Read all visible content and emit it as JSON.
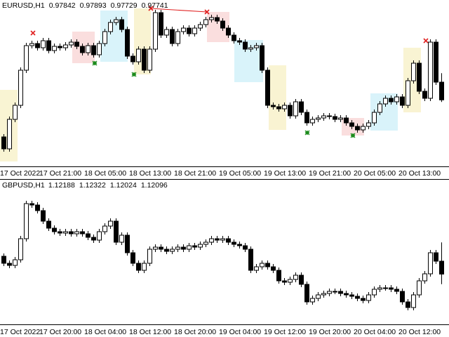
{
  "chart_data": [
    {
      "type": "candlestick",
      "title": "EURUSD,H1",
      "color": "#000000",
      "up_fill": "#ffffff",
      "down_fill": "#000000",
      "categories": [
        "17 Oct 2022",
        null,
        null,
        null,
        null,
        null,
        null,
        "17 Oct 21:00",
        null,
        null,
        null,
        null,
        null,
        null,
        null,
        "18 Oct 05:00",
        null,
        null,
        null,
        null,
        null,
        null,
        null,
        "18 Oct 13:00",
        null,
        null,
        null,
        null,
        null,
        null,
        null,
        "18 Oct 21:00",
        null,
        null,
        null,
        null,
        null,
        null,
        null,
        "19 Oct 05:00",
        null,
        null,
        null,
        null,
        null,
        null,
        null,
        "19 Oct 13:00",
        null,
        null,
        null,
        null,
        null,
        null,
        null,
        "19 Oct 21:00",
        null,
        null,
        null,
        null,
        null,
        null,
        null,
        "20 Oct 05:00",
        null,
        null,
        null,
        null,
        null,
        null,
        null,
        "20 Oct 13:00",
        null,
        null,
        null,
        null,
        null,
        null,
        null
      ],
      "open": [
        0.9753,
        0.97462,
        0.9763,
        0.9771,
        0.9791,
        0.9805,
        0.98062,
        0.98038,
        0.98078,
        0.98022,
        0.98046,
        0.98038,
        0.98054,
        0.9807,
        0.98046,
        0.9801,
        0.9805,
        0.97998,
        0.98062,
        0.9813,
        0.98182,
        0.98198,
        0.98142,
        0.9799,
        0.97958,
        0.9803,
        0.9791,
        0.9803,
        0.98238,
        0.9811,
        0.98142,
        0.98062,
        0.9813,
        0.9815,
        0.98118,
        0.9815,
        0.9817,
        0.98198,
        0.9821,
        0.9819,
        0.9815,
        0.9811,
        0.98078,
        0.9807,
        0.9803,
        0.98038,
        0.9805,
        0.9791,
        0.9771,
        0.97702,
        0.9769,
        0.9771,
        0.9765,
        0.9773,
        0.9767,
        0.9761,
        0.9763,
        0.97638,
        0.9765,
        0.97646,
        0.9763,
        0.97638,
        0.9761,
        0.9759,
        0.9757,
        0.9759,
        0.9761,
        0.9767,
        0.97718,
        0.9775,
        0.9773,
        0.97758,
        0.9771,
        0.9785,
        0.9795,
        0.9779,
        0.9775,
        0.9807,
        0.97842
      ],
      "high": [
        0.97546,
        0.97646,
        0.97726,
        0.97926,
        0.98066,
        0.98078,
        0.98078,
        0.98094,
        0.98094,
        0.98062,
        0.98062,
        0.9807,
        0.98086,
        0.98086,
        0.98062,
        0.98066,
        0.98066,
        0.98078,
        0.98146,
        0.98198,
        0.98214,
        0.98214,
        0.98158,
        0.98006,
        0.98046,
        0.98046,
        0.98046,
        0.98254,
        0.98254,
        0.98158,
        0.98158,
        0.98146,
        0.98166,
        0.98166,
        0.98166,
        0.98186,
        0.98214,
        0.98226,
        0.98226,
        0.98206,
        0.98166,
        0.98126,
        0.98094,
        0.98086,
        0.98054,
        0.98066,
        0.98066,
        0.97926,
        0.97726,
        0.97718,
        0.97726,
        0.97726,
        0.97746,
        0.97746,
        0.97686,
        0.97646,
        0.97654,
        0.97666,
        0.97666,
        0.97662,
        0.97654,
        0.97654,
        0.97626,
        0.97606,
        0.97606,
        0.97626,
        0.97686,
        0.97734,
        0.97766,
        0.97766,
        0.97774,
        0.97774,
        0.97866,
        0.97966,
        0.97966,
        0.97806,
        0.98086,
        0.98086,
        0.97893
      ],
      "low": [
        0.97446,
        0.97446,
        0.97614,
        0.97694,
        0.97894,
        0.98034,
        0.98022,
        0.98022,
        0.98006,
        0.98006,
        0.98022,
        0.98022,
        0.98038,
        0.9803,
        0.97994,
        0.97994,
        0.97982,
        0.97982,
        0.98046,
        0.98114,
        0.98166,
        0.98126,
        0.97974,
        0.97942,
        0.97942,
        0.97894,
        0.97894,
        0.98014,
        0.98094,
        0.98094,
        0.98046,
        0.98046,
        0.98114,
        0.98102,
        0.98102,
        0.98134,
        0.98154,
        0.98182,
        0.98174,
        0.98134,
        0.98094,
        0.98062,
        0.98054,
        0.98014,
        0.98014,
        0.98022,
        0.97894,
        0.97694,
        0.97686,
        0.97674,
        0.97674,
        0.97634,
        0.97634,
        0.97654,
        0.97594,
        0.97594,
        0.97614,
        0.97622,
        0.9763,
        0.97614,
        0.97614,
        0.97594,
        0.97574,
        0.97554,
        0.97554,
        0.97574,
        0.97594,
        0.97654,
        0.97702,
        0.97714,
        0.97714,
        0.97694,
        0.97694,
        0.97834,
        0.97774,
        0.97734,
        0.97734,
        0.97826,
        0.97729
      ],
      "close": [
        0.97462,
        0.9763,
        0.9771,
        0.9791,
        0.9805,
        0.98062,
        0.98038,
        0.98078,
        0.98022,
        0.98046,
        0.98038,
        0.98054,
        0.9807,
        0.98046,
        0.9801,
        0.9805,
        0.97998,
        0.98062,
        0.9813,
        0.98182,
        0.98198,
        0.98142,
        0.9799,
        0.97958,
        0.9803,
        0.9791,
        0.9803,
        0.98238,
        0.9811,
        0.98142,
        0.98062,
        0.9813,
        0.9815,
        0.98118,
        0.9815,
        0.9817,
        0.98198,
        0.9821,
        0.9819,
        0.9815,
        0.9811,
        0.98078,
        0.9807,
        0.9803,
        0.98038,
        0.9805,
        0.9791,
        0.9771,
        0.97702,
        0.9769,
        0.9771,
        0.9765,
        0.9773,
        0.9767,
        0.9761,
        0.9763,
        0.97638,
        0.9765,
        0.97646,
        0.9763,
        0.97638,
        0.9761,
        0.9759,
        0.9757,
        0.9759,
        0.9761,
        0.9767,
        0.97718,
        0.9775,
        0.9773,
        0.97758,
        0.9771,
        0.9785,
        0.9795,
        0.9779,
        0.9775,
        0.9807,
        0.97842,
        0.97741
      ],
      "ylim": [
        0.97362,
        0.9831
      ]
    },
    {
      "type": "candlestick",
      "title": "GBPUSD,H1",
      "color": "#000000",
      "up_fill": "#ffffff",
      "down_fill": "#000000",
      "categories": [
        "17 Oct 2022",
        null,
        null,
        null,
        null,
        null,
        null,
        "17 Oct 20:00",
        null,
        null,
        null,
        null,
        null,
        null,
        null,
        "18 Oct 04:00",
        null,
        null,
        null,
        null,
        null,
        null,
        null,
        "18 Oct 12:00",
        null,
        null,
        null,
        null,
        null,
        null,
        null,
        "18 Oct 20:00",
        null,
        null,
        null,
        null,
        null,
        null,
        null,
        "19 Oct 04:00",
        null,
        null,
        null,
        null,
        null,
        null,
        null,
        "19 Oct 12:00",
        null,
        null,
        null,
        null,
        null,
        null,
        null,
        "19 Oct 20:00",
        null,
        null,
        null,
        null,
        null,
        null,
        null,
        "20 Oct 04:00",
        null,
        null,
        null,
        null,
        null,
        null,
        null,
        "20 Oct 12:00",
        null,
        null,
        null,
        null,
        null,
        null,
        null
      ],
      "open": [
        1.12223,
        1.12173,
        1.12158,
        1.12198,
        1.12348,
        1.12598,
        1.12588,
        1.12548,
        1.12473,
        1.12423,
        1.12398,
        1.12388,
        1.12398,
        1.12383,
        1.12398,
        1.12383,
        1.12358,
        1.12338,
        1.12398,
        1.12438,
        1.12473,
        1.12323,
        1.12373,
        1.12248,
        1.12173,
        1.12123,
        1.12173,
        1.12273,
        1.12288,
        1.12273,
        1.12258,
        1.12273,
        1.12288,
        1.12273,
        1.12298,
        1.12288,
        1.12308,
        1.12323,
        1.12348,
        1.12338,
        1.12348,
        1.12323,
        1.12308,
        1.12298,
        1.12273,
        1.12123,
        1.12148,
        1.12173,
        1.12148,
        1.12123,
        1.12048,
        1.12038,
        1.12058,
        1.12088,
        1.12023,
        1.11898,
        1.11923,
        1.11948,
        1.11958,
        1.11973,
        1.11973,
        1.11958,
        1.11948,
        1.11938,
        1.11923,
        1.11908,
        1.11948,
        1.11988,
        1.11998,
        1.11998,
        1.11988,
        1.11973,
        1.11898,
        1.11858,
        1.11948,
        1.12048,
        1.12098,
        1.12248,
        1.12188
      ],
      "high": [
        1.12243,
        1.12193,
        1.12218,
        1.12368,
        1.12618,
        1.12618,
        1.12608,
        1.12568,
        1.12493,
        1.12443,
        1.12418,
        1.12418,
        1.12418,
        1.12418,
        1.12418,
        1.12403,
        1.12378,
        1.12418,
        1.12458,
        1.12493,
        1.12493,
        1.12393,
        1.12393,
        1.12268,
        1.12193,
        1.12193,
        1.12293,
        1.12308,
        1.12308,
        1.12293,
        1.12293,
        1.12308,
        1.12308,
        1.12318,
        1.12318,
        1.12328,
        1.12343,
        1.12368,
        1.12368,
        1.12368,
        1.12368,
        1.12343,
        1.12328,
        1.12318,
        1.12293,
        1.12168,
        1.12193,
        1.12193,
        1.12168,
        1.12143,
        1.12068,
        1.12078,
        1.12108,
        1.12108,
        1.12043,
        1.11943,
        1.11968,
        1.11978,
        1.11993,
        1.11993,
        1.11993,
        1.11978,
        1.11968,
        1.11958,
        1.11943,
        1.11968,
        1.12008,
        1.12018,
        1.12018,
        1.12018,
        1.12008,
        1.11993,
        1.11918,
        1.11968,
        1.12068,
        1.12118,
        1.12268,
        1.12268,
        1.12322
      ],
      "low": [
        1.12153,
        1.12138,
        1.12138,
        1.12178,
        1.12328,
        1.12568,
        1.12528,
        1.12453,
        1.12403,
        1.12378,
        1.12368,
        1.12368,
        1.12363,
        1.12363,
        1.12363,
        1.12338,
        1.12318,
        1.12318,
        1.12378,
        1.12418,
        1.12303,
        1.12303,
        1.12228,
        1.12153,
        1.12103,
        1.12103,
        1.12153,
        1.12253,
        1.12253,
        1.12238,
        1.12238,
        1.12253,
        1.12253,
        1.12253,
        1.12268,
        1.12268,
        1.12288,
        1.12303,
        1.12318,
        1.12318,
        1.12303,
        1.12288,
        1.12278,
        1.12253,
        1.12103,
        1.12103,
        1.12128,
        1.12128,
        1.12103,
        1.12028,
        1.12018,
        1.12018,
        1.12038,
        1.12003,
        1.11878,
        1.11878,
        1.11903,
        1.11928,
        1.11938,
        1.11953,
        1.11938,
        1.11928,
        1.11918,
        1.11903,
        1.11888,
        1.11888,
        1.11928,
        1.11968,
        1.11978,
        1.11968,
        1.11953,
        1.11878,
        1.11838,
        1.11838,
        1.11928,
        1.12028,
        1.12078,
        1.12168,
        1.12024
      ],
      "close": [
        1.12173,
        1.12158,
        1.12198,
        1.12348,
        1.12598,
        1.12588,
        1.12548,
        1.12473,
        1.12423,
        1.12398,
        1.12388,
        1.12398,
        1.12383,
        1.12398,
        1.12383,
        1.12358,
        1.12338,
        1.12398,
        1.12438,
        1.12473,
        1.12323,
        1.12373,
        1.12248,
        1.12173,
        1.12123,
        1.12173,
        1.12273,
        1.12288,
        1.12273,
        1.12258,
        1.12273,
        1.12288,
        1.12273,
        1.12298,
        1.12288,
        1.12308,
        1.12323,
        1.12348,
        1.12338,
        1.12348,
        1.12323,
        1.12308,
        1.12298,
        1.12273,
        1.12123,
        1.12148,
        1.12173,
        1.12148,
        1.12123,
        1.12048,
        1.12038,
        1.12058,
        1.12088,
        1.12023,
        1.11898,
        1.11923,
        1.11948,
        1.11958,
        1.11973,
        1.11973,
        1.11958,
        1.11948,
        1.11938,
        1.11923,
        1.11908,
        1.11948,
        1.11988,
        1.11998,
        1.11998,
        1.11988,
        1.11973,
        1.11898,
        1.11858,
        1.11948,
        1.12048,
        1.12098,
        1.12248,
        1.12188,
        1.12096
      ],
      "ylim": [
        1.11738,
        1.12698
      ]
    }
  ]
}
